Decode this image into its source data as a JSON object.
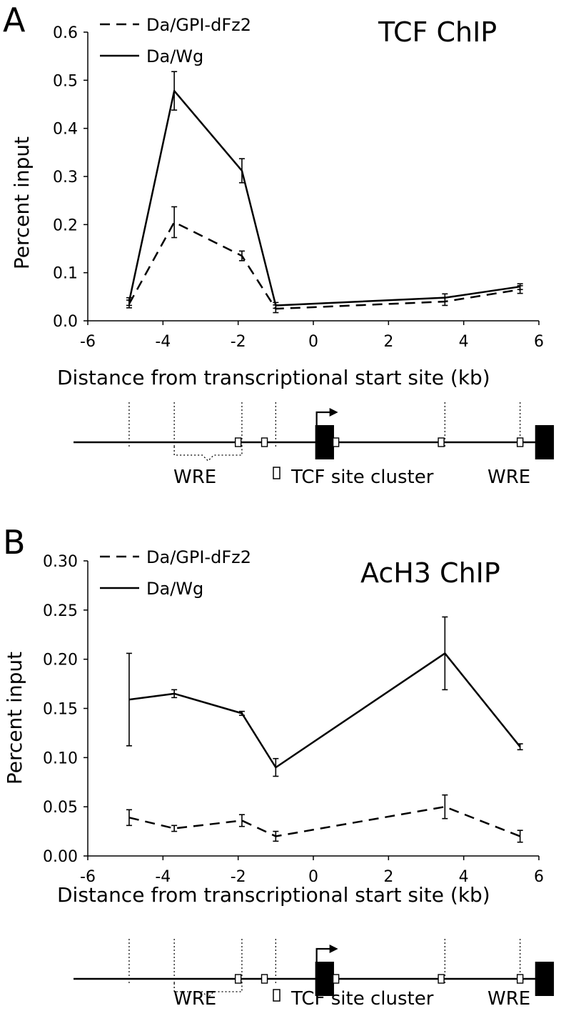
{
  "chart_data": [
    {
      "type": "line",
      "panel": "A",
      "title": "TCF ChIP",
      "xlabel": "Distance from transcriptional start site (kb)",
      "ylabel": "Percent input",
      "xlim": [
        -6,
        6
      ],
      "ylim": [
        0,
        0.6
      ],
      "xticks": [
        -6,
        -4,
        -2,
        0,
        2,
        4,
        6
      ],
      "yticks": [
        "0.0",
        "0.1",
        "0.2",
        "0.3",
        "0.4",
        "0.5",
        "0.6"
      ],
      "legend_position": "top-left",
      "series": [
        {
          "name": "Da/GPI-dFz2",
          "style": "dashed",
          "x": [
            -4.9,
            -3.7,
            -1.9,
            -1.0,
            3.5,
            5.5
          ],
          "y": [
            0.035,
            0.205,
            0.135,
            0.025,
            0.04,
            0.065
          ],
          "err": [
            0.008,
            0.032,
            0.01,
            0.008,
            0.008,
            0.008
          ]
        },
        {
          "name": "Da/Wg",
          "style": "solid",
          "x": [
            -4.9,
            -3.7,
            -1.9,
            -1.0,
            3.5,
            5.5
          ],
          "y": [
            0.04,
            0.478,
            0.312,
            0.032,
            0.048,
            0.071
          ],
          "err": [
            0.008,
            0.04,
            0.025,
            0.006,
            0.008,
            0.006
          ]
        }
      ]
    },
    {
      "type": "line",
      "panel": "B",
      "title": "AcH3 ChIP",
      "xlabel": "Distance from transcriptional start site (kb)",
      "ylabel": "Percent input",
      "xlim": [
        -6,
        6
      ],
      "ylim": [
        0,
        0.3
      ],
      "xticks": [
        -6,
        -4,
        -2,
        0,
        2,
        4,
        6
      ],
      "yticks": [
        "0.00",
        "0.05",
        "0.10",
        "0.15",
        "0.20",
        "0.25",
        "0.30"
      ],
      "legend_position": "top-left",
      "series": [
        {
          "name": "Da/GPI-dFz2",
          "style": "dashed",
          "x": [
            -4.9,
            -3.7,
            -1.9,
            -1.0,
            3.5,
            5.5
          ],
          "y": [
            0.039,
            0.028,
            0.036,
            0.02,
            0.05,
            0.02
          ],
          "err": [
            0.008,
            0.003,
            0.006,
            0.005,
            0.012,
            0.006
          ]
        },
        {
          "name": "Da/Wg",
          "style": "solid",
          "x": [
            -4.9,
            -3.7,
            -1.9,
            -1.0,
            3.5,
            5.5
          ],
          "y": [
            0.159,
            0.165,
            0.145,
            0.09,
            0.206,
            0.111
          ],
          "err": [
            0.047,
            0.004,
            0.002,
            0.009,
            0.037,
            0.003
          ]
        }
      ]
    }
  ],
  "gene_map": {
    "region_lines_kb": [
      -4.9,
      -3.7,
      -1.9,
      -1.0,
      3.5,
      5.5
    ],
    "tcf_sites_kb": [
      -2.0,
      -1.3,
      0.6,
      3.4,
      5.5
    ],
    "exons_kb": [
      [
        0.05,
        0.55
      ],
      [
        5.9,
        6.4
      ]
    ],
    "tss_kb": 0.05,
    "wre_brace_kb": [
      -3.7,
      -1.9
    ],
    "labels": {
      "wre_left": "WRE",
      "tcf_site_cluster": "TCF site cluster",
      "wre_right": "WRE"
    }
  }
}
